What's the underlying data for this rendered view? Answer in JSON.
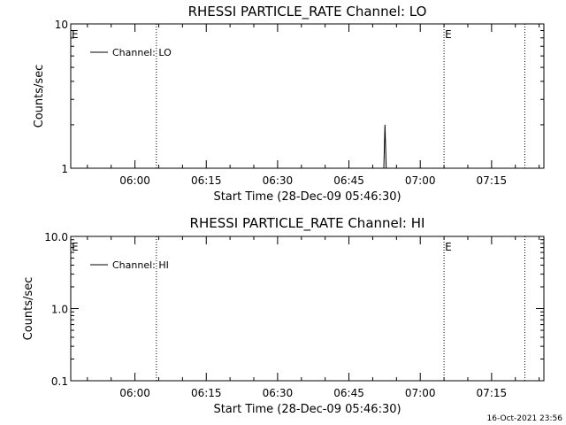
{
  "footer_timestamp": "16-Oct-2021 23:56",
  "chart_data": [
    {
      "type": "line",
      "title": "RHESSI PARTICLE_RATE Channel: LO",
      "xlabel": "Start Time (28-Dec-09 05:46:30)",
      "ylabel": "Counts/sec",
      "yscale": "log",
      "ylim": [
        1,
        10
      ],
      "xlim": [
        "05:46:30",
        "07:26:00"
      ],
      "x_ticks": [
        "06:00",
        "06:15",
        "06:30",
        "06:45",
        "07:00",
        "07:15"
      ],
      "y_ticks": [
        "1",
        "10"
      ],
      "legend": {
        "entries": [
          "Channel: LO"
        ],
        "placement": "top-left"
      },
      "markers": [
        {
          "label": "E",
          "time": "05:46:30"
        },
        {
          "label": "E",
          "time": "07:05:00"
        }
      ],
      "dotted_lines": [
        "06:04:30",
        "07:05:00",
        "07:22:00"
      ],
      "series": [
        {
          "name": "Channel: LO",
          "points": [
            [
              "06:52:20",
              1.0
            ],
            [
              "06:52:35",
              2.0
            ],
            [
              "06:52:50",
              1.0
            ]
          ]
        }
      ],
      "grid": false
    },
    {
      "type": "line",
      "title": "RHESSI PARTICLE_RATE Channel: HI",
      "xlabel": "Start Time (28-Dec-09 05:46:30)",
      "ylabel": "Counts/sec",
      "yscale": "log",
      "ylim": [
        0.1,
        10.0
      ],
      "xlim": [
        "05:46:30",
        "07:26:00"
      ],
      "x_ticks": [
        "06:00",
        "06:15",
        "06:30",
        "06:45",
        "07:00",
        "07:15"
      ],
      "y_ticks": [
        "0.1",
        "1.0",
        "10.0"
      ],
      "legend": {
        "entries": [
          "Channel: HI"
        ],
        "placement": "top-left"
      },
      "markers": [
        {
          "label": "E",
          "time": "05:46:30"
        },
        {
          "label": "E",
          "time": "07:05:00"
        }
      ],
      "dotted_lines": [
        "06:04:30",
        "07:05:00",
        "07:22:00"
      ],
      "series": [
        {
          "name": "Channel: HI",
          "points": []
        }
      ],
      "grid": false
    }
  ]
}
